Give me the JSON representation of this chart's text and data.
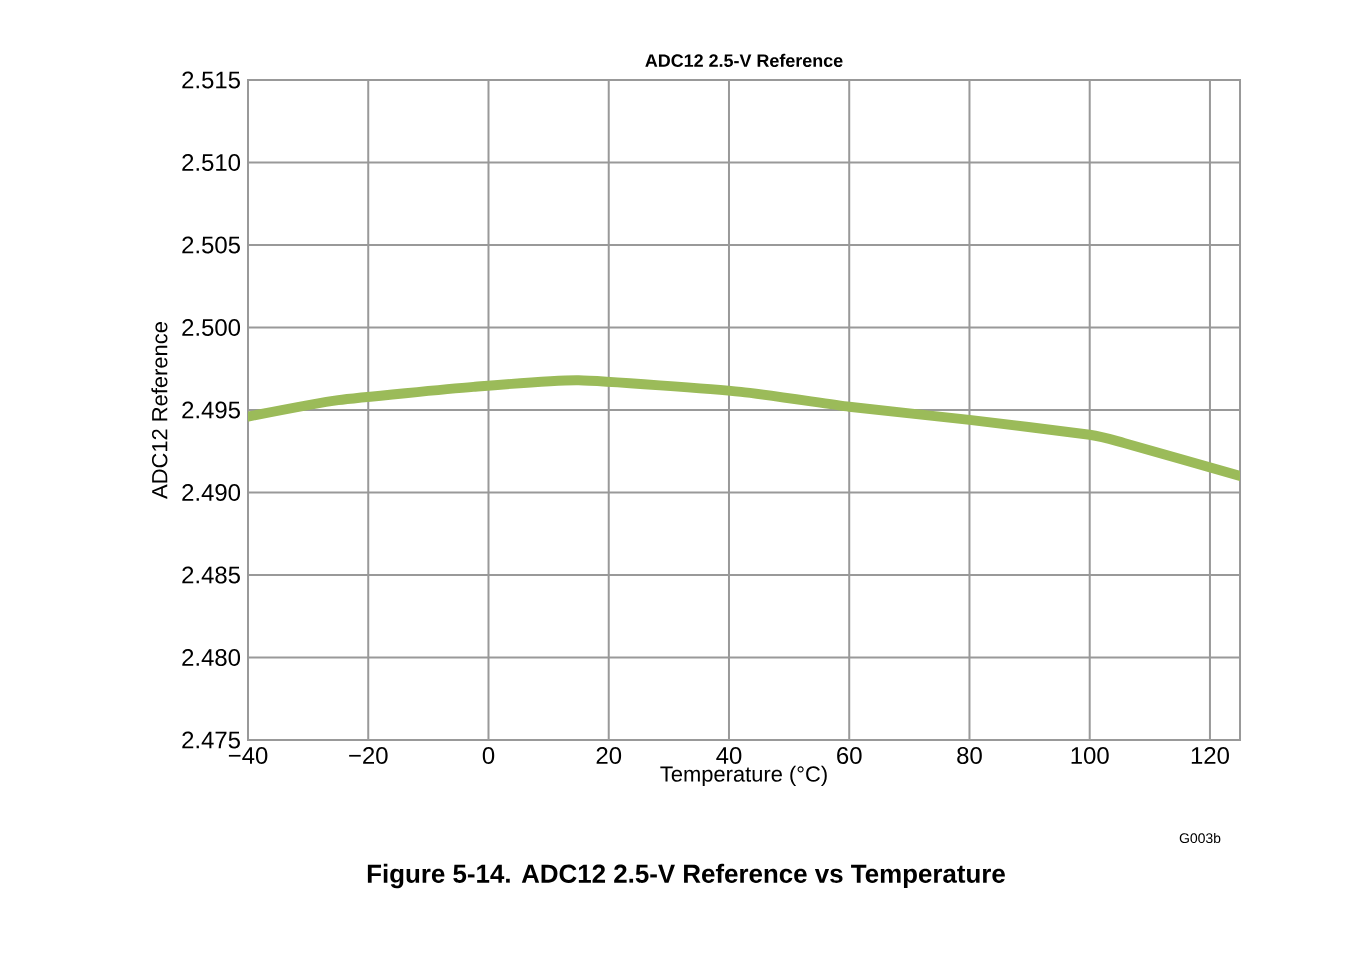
{
  "chart_data": {
    "type": "line",
    "title": "ADC12  2.5-V Reference",
    "xlabel": "Temperature (°C)",
    "ylabel": "ADC12 Reference",
    "x": [
      -40,
      -25,
      -2.5,
      15,
      42,
      60,
      80,
      100,
      105.7,
      125
    ],
    "series": [
      {
        "color": "#9bbb59",
        "values": [
          2.4946,
          2.4956,
          2.4964,
          2.4968,
          2.4961,
          2.4952,
          2.4944,
          2.4935,
          2.493,
          2.491
        ]
      }
    ],
    "xlim": [
      -40,
      125
    ],
    "xticks": [
      {
        "value": -40,
        "label": "−40"
      },
      {
        "value": -20,
        "label": "−20"
      },
      0,
      20,
      40,
      60,
      80,
      100,
      120
    ],
    "ylim": [
      2.475,
      2.515
    ],
    "yticks": [
      {
        "value": 2.475,
        "label": "2.475"
      },
      {
        "value": 2.48,
        "label": "2.480"
      },
      {
        "value": 2.485,
        "label": "2.485"
      },
      {
        "value": 2.49,
        "label": "2.490"
      },
      {
        "value": 2.495,
        "label": "2.495"
      },
      {
        "value": 2.5,
        "label": "2.500"
      },
      {
        "value": 2.505,
        "label": "2.505"
      },
      {
        "value": 2.51,
        "label": "2.510"
      },
      {
        "value": 2.515,
        "label": "2.515"
      }
    ],
    "grid": true,
    "marker": "none",
    "line_style": "solid",
    "annotations": [
      "G003b",
      "Figure 5-14. ADC12 2.5-V Reference vs Temperature"
    ]
  }
}
